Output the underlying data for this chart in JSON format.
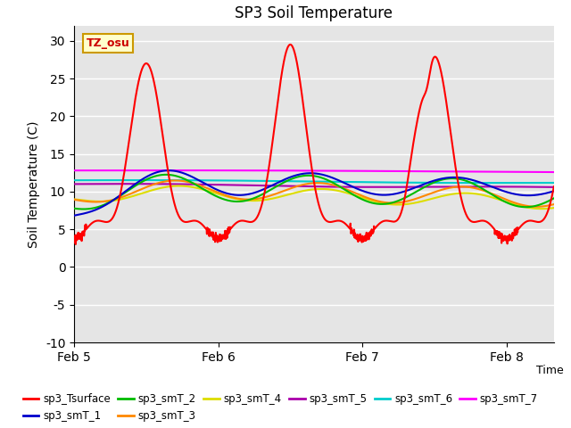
{
  "title": "SP3 Soil Temperature",
  "xlabel": "Time",
  "ylabel": "Soil Temperature (C)",
  "ylim": [
    -10,
    32
  ],
  "xlim": [
    0,
    3.33
  ],
  "xtick_labels": [
    "Feb 5",
    "Feb 6",
    "Feb 7",
    "Feb 8"
  ],
  "xtick_pos": [
    0,
    1,
    2,
    3
  ],
  "ytick_vals": [
    -10,
    -5,
    0,
    5,
    10,
    15,
    20,
    25,
    30
  ],
  "bg_color": "#e5e5e5",
  "annotation_text": "TZ_osu",
  "annotation_bg": "#ffffcc",
  "annotation_border": "#cc9900",
  "series_colors": {
    "sp3_Tsurface": "#ff0000",
    "sp3_smT_1": "#0000cc",
    "sp3_smT_2": "#00bb00",
    "sp3_smT_3": "#ff8800",
    "sp3_smT_4": "#dddd00",
    "sp3_smT_5": "#aa00aa",
    "sp3_smT_6": "#00cccc",
    "sp3_smT_7": "#ff00ff"
  },
  "legend_order": [
    "sp3_Tsurface",
    "sp3_smT_1",
    "sp3_smT_2",
    "sp3_smT_3",
    "sp3_smT_4",
    "sp3_smT_5",
    "sp3_smT_6",
    "sp3_smT_7"
  ]
}
